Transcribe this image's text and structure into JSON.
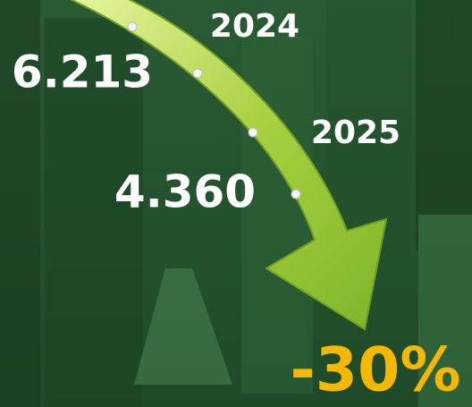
{
  "labels": {
    "year_1": "2024",
    "value_1": "6.213",
    "year_2": "2025",
    "value_2": "4.360",
    "change": "-30%"
  }
}
